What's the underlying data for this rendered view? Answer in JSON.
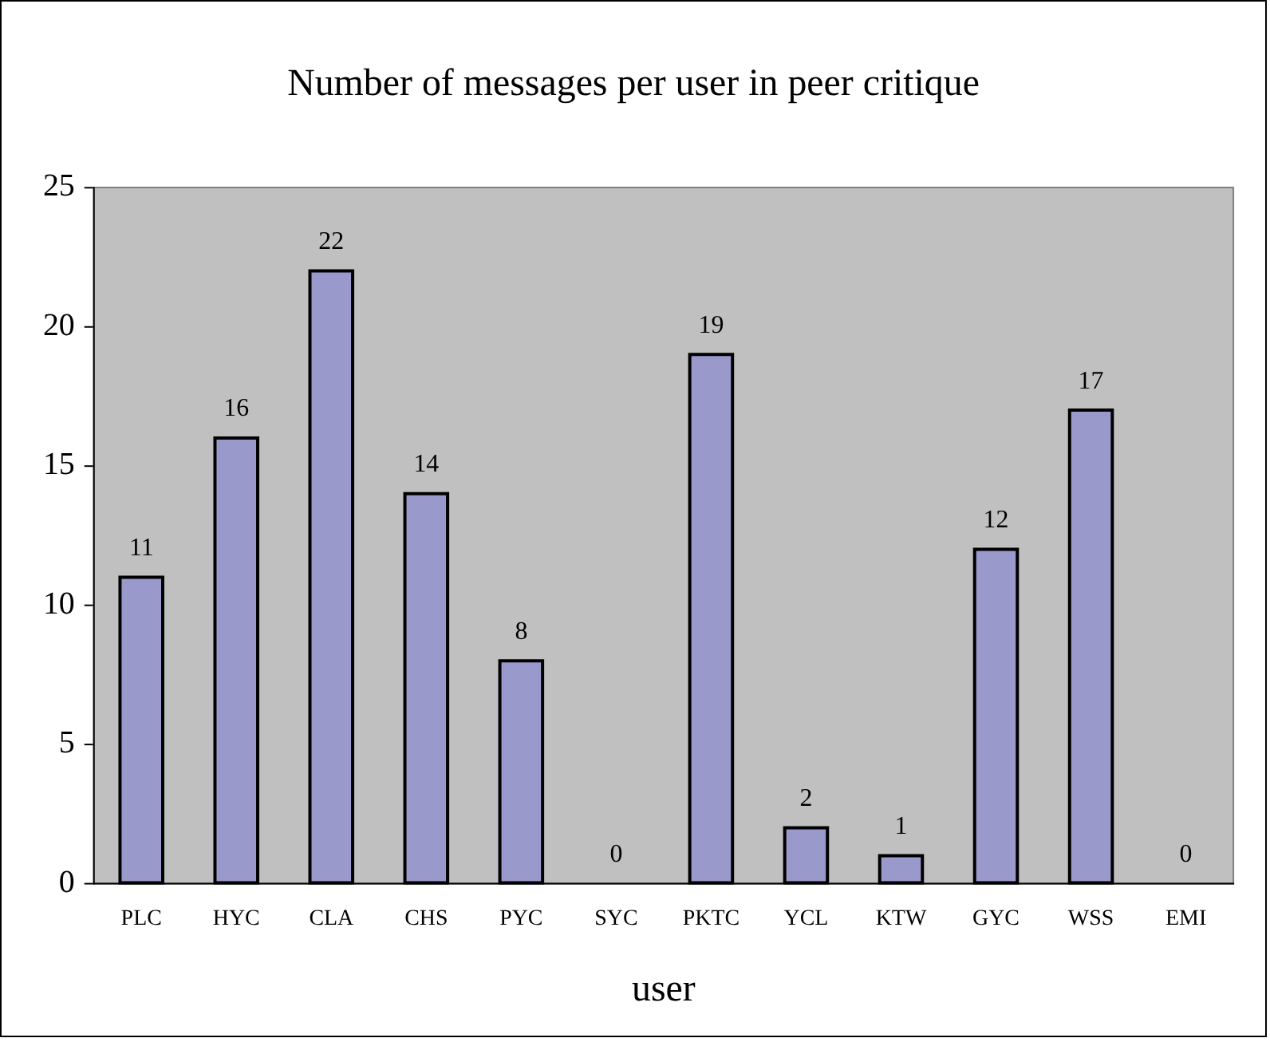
{
  "chart_data": {
    "type": "bar",
    "title": "Number of messages per user in peer critique",
    "xlabel": "user",
    "categories": [
      "PLC",
      "HYC",
      "CLA",
      "CHS",
      "PYC",
      "SYC",
      "PKTC",
      "YCL",
      "KTW",
      "GYC",
      "WSS",
      "EMI"
    ],
    "values": [
      11,
      16,
      22,
      14,
      8,
      0,
      19,
      2,
      1,
      12,
      17,
      0
    ],
    "color": "#9999cc",
    "ylim": [
      0,
      25
    ],
    "yticks": [
      0,
      5,
      10,
      15,
      20,
      25
    ],
    "grid": false,
    "legend": false,
    "data_labels": true
  }
}
